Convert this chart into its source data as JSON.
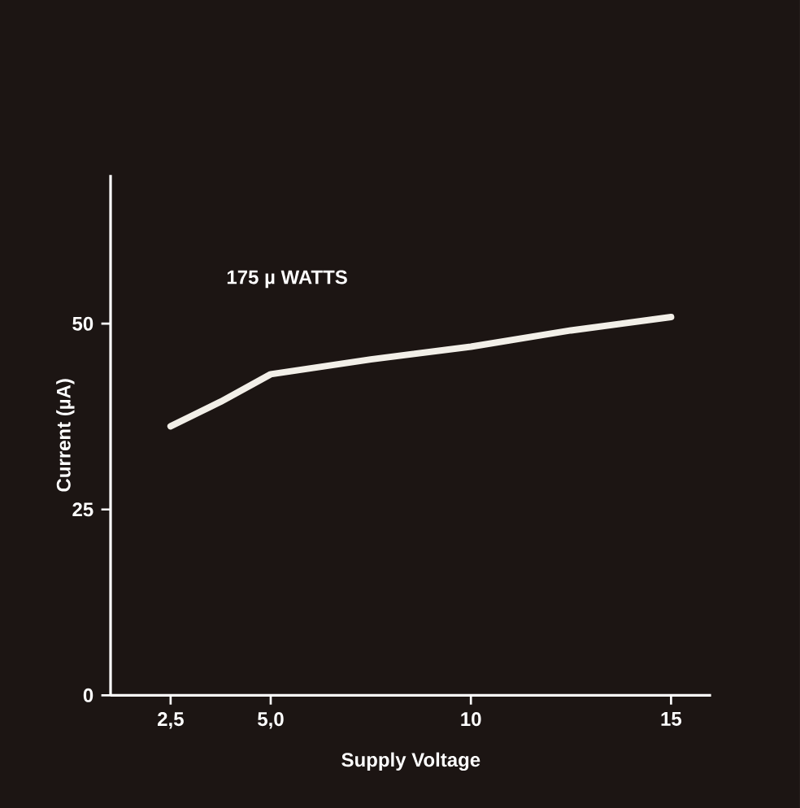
{
  "chart_data": {
    "type": "line",
    "xlabel": "Supply Voltage",
    "ylabel": "Current (µA)",
    "annotations": [
      "175 µ WATTS"
    ],
    "x": [
      2.5,
      3.75,
      5.0,
      7.5,
      10,
      12.5,
      15
    ],
    "series": [
      {
        "color": "#f2efe8",
        "values": [
          36.2,
          39.5,
          43.2,
          45.2,
          46.9,
          49.1,
          50.9
        ]
      }
    ],
    "xlim": [
      1,
      16
    ],
    "ylim": [
      0,
      70
    ],
    "xticks": [
      {
        "value": 2.5,
        "label": "2,5"
      },
      {
        "value": 5.0,
        "label": "5,0"
      },
      10,
      15
    ],
    "yticks": [
      0,
      25,
      50
    ],
    "grid": false,
    "marker": "none",
    "line_style": "solid"
  }
}
